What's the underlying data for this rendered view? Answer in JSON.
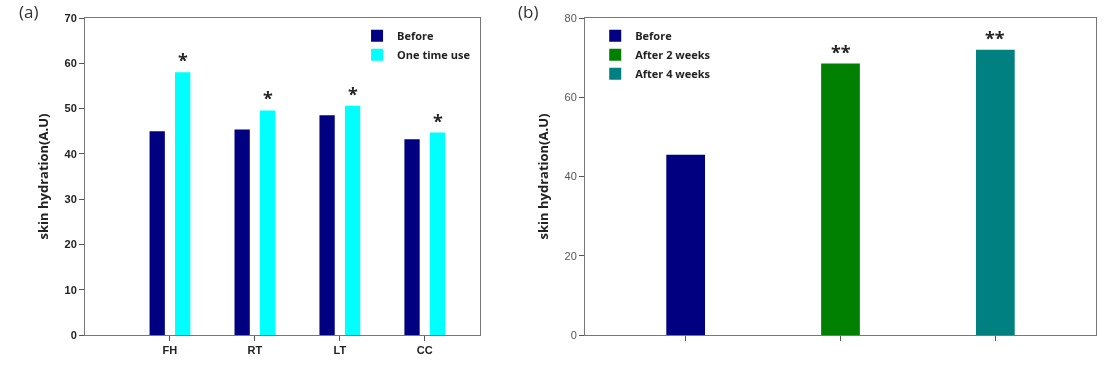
{
  "chart_data": [
    {
      "type": "bar",
      "title": "(a)",
      "ylabel": "skin hydration(A.U)",
      "categories": [
        "FH",
        "RT",
        "LT",
        "CC"
      ],
      "series": [
        {
          "name": "Before",
          "color": "#000080",
          "values": [
            45,
            45.4,
            48.5,
            43.2
          ]
        },
        {
          "name": "One time use",
          "color": "#00ffff",
          "values": [
            58,
            49.6,
            50.6,
            44.7
          ]
        }
      ],
      "ylim": [
        0,
        70
      ],
      "yticks": [
        0,
        10,
        20,
        30,
        40,
        50,
        60,
        70
      ],
      "legend": "top right",
      "grid": false,
      "annotations": [
        "*",
        "*",
        "*",
        "*"
      ]
    },
    {
      "type": "bar",
      "title": "(b)",
      "ylabel": "skin hydration(A.U)",
      "categories": [
        null,
        null,
        null
      ],
      "series": [
        {
          "name": "Before",
          "color": "#000080",
          "values": [
            45.5,
            null,
            null
          ]
        },
        {
          "name": "After 2 weeks",
          "color": "#008000",
          "values": [
            null,
            68.5,
            null
          ]
        },
        {
          "name": "After 4 weeks",
          "color": "#008080",
          "values": [
            null,
            null,
            72
          ]
        }
      ],
      "ylim": [
        0,
        80
      ],
      "yticks": [
        0,
        20,
        40,
        60,
        80
      ],
      "legend": "top left",
      "grid": false,
      "annotations": [
        {
          "text": "**",
          "y": 68.5
        },
        {
          "text": "**",
          "y": 72
        }
      ]
    }
  ]
}
